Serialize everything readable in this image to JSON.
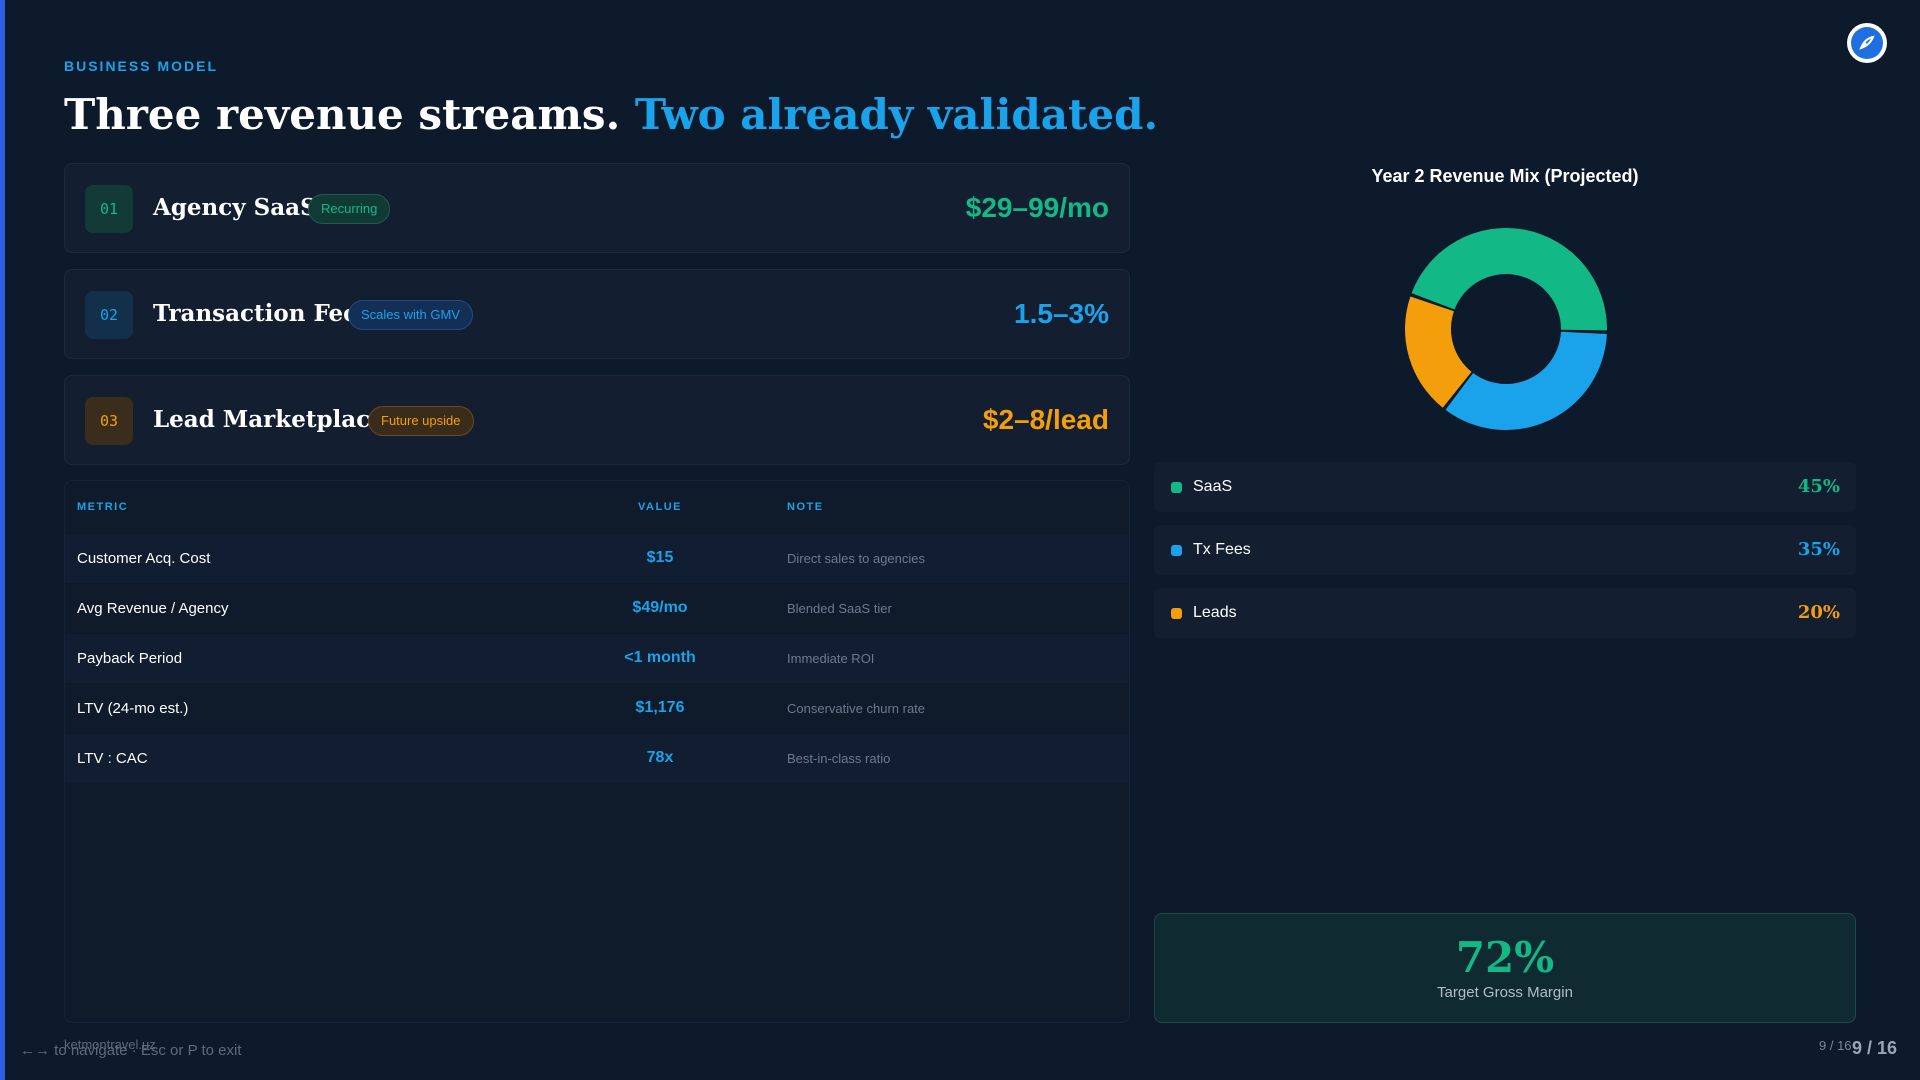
{
  "header": {
    "eyebrow": "BUSINESS MODEL",
    "title_main": "Three revenue streams.",
    "title_accent": "Two already validated."
  },
  "streams": [
    {
      "num": "01",
      "name": "Agency SaaS",
      "tag": "Recurring",
      "price": "$29–99/mo",
      "color": "#12b886"
    },
    {
      "num": "02",
      "name": "Transaction Fee",
      "tag": "Scales with GMV",
      "price": "1.5–3%",
      "color": "#1aa3ea"
    },
    {
      "num": "03",
      "name": "Lead Marketplace",
      "tag": "Future upside",
      "price": "$2–8/lead",
      "color": "#f59e0b"
    }
  ],
  "metrics": {
    "headers": [
      "METRIC",
      "VALUE",
      "NOTE"
    ],
    "rows": [
      [
        "Customer Acq. Cost",
        "$15",
        "Direct sales to agencies"
      ],
      [
        "Avg Revenue / Agency",
        "$49/mo",
        "Blended SaaS tier"
      ],
      [
        "Payback Period",
        "<1 month",
        "Immediate ROI"
      ],
      [
        "LTV (24-mo est.)",
        "$1,176",
        "Conservative churn rate"
      ],
      [
        "LTV : CAC",
        "78x",
        "Best-in-class ratio"
      ]
    ]
  },
  "chart_data": {
    "type": "pie",
    "title": "Year 2 Revenue Mix (Projected)",
    "categories": [
      "SaaS",
      "Tx Fees",
      "Leads"
    ],
    "values": [
      45,
      35,
      20
    ],
    "labels": [
      "45%",
      "35%",
      "20%"
    ],
    "colors": [
      "#12b886",
      "#1aa3ea",
      "#f59e0b"
    ],
    "hole": true
  },
  "margin": {
    "value": "72%",
    "label": "Target Gross Margin"
  },
  "footer": {
    "url": "ketmontravel.uz",
    "hint": "←→ to navigate · Esc or P to exit",
    "page_small": "9 / 16",
    "page_big": "9 / 16"
  },
  "icons": {
    "logo": "paper-plane-logo-icon"
  }
}
